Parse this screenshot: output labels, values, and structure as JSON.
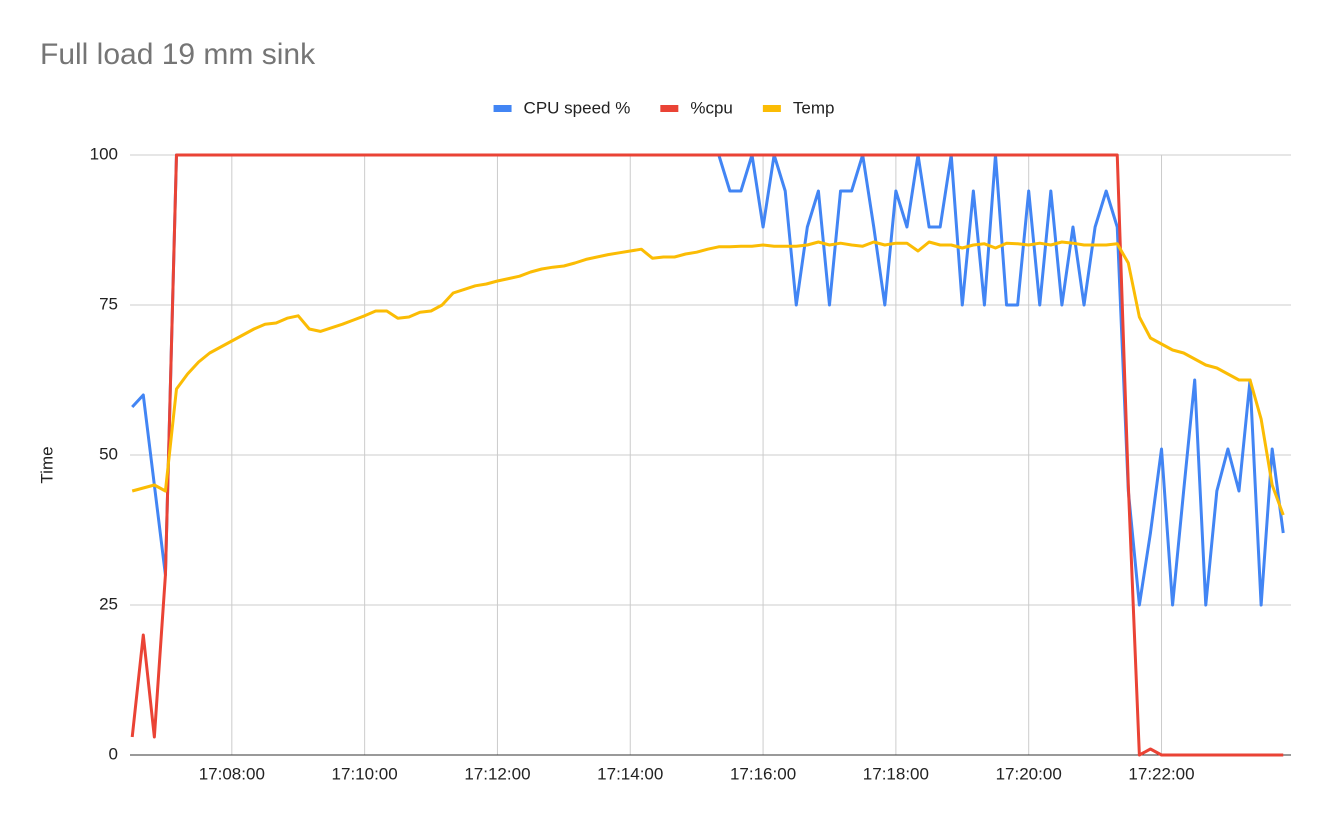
{
  "chart_data": {
    "type": "line",
    "title": "Full load 19 mm sink",
    "y_label": "Time",
    "x": [
      "17:06:30",
      "17:06:40",
      "17:06:50",
      "17:07:00",
      "17:07:10",
      "17:07:20",
      "17:07:30",
      "17:07:40",
      "17:07:50",
      "17:08:00",
      "17:08:10",
      "17:08:20",
      "17:08:30",
      "17:08:40",
      "17:08:50",
      "17:09:00",
      "17:09:10",
      "17:09:20",
      "17:09:30",
      "17:09:40",
      "17:09:50",
      "17:10:00",
      "17:10:10",
      "17:10:20",
      "17:10:30",
      "17:10:40",
      "17:10:50",
      "17:11:00",
      "17:11:10",
      "17:11:20",
      "17:11:30",
      "17:11:40",
      "17:11:50",
      "17:12:00",
      "17:12:10",
      "17:12:20",
      "17:12:30",
      "17:12:40",
      "17:12:50",
      "17:13:00",
      "17:13:10",
      "17:13:20",
      "17:13:30",
      "17:13:40",
      "17:13:50",
      "17:14:00",
      "17:14:10",
      "17:14:20",
      "17:14:30",
      "17:14:40",
      "17:14:50",
      "17:15:00",
      "17:15:10",
      "17:15:20",
      "17:15:30",
      "17:15:40",
      "17:15:50",
      "17:16:00",
      "17:16:10",
      "17:16:20",
      "17:16:30",
      "17:16:40",
      "17:16:50",
      "17:17:00",
      "17:17:10",
      "17:17:20",
      "17:17:30",
      "17:17:40",
      "17:17:50",
      "17:18:00",
      "17:18:10",
      "17:18:20",
      "17:18:30",
      "17:18:40",
      "17:18:50",
      "17:19:00",
      "17:19:10",
      "17:19:20",
      "17:19:30",
      "17:19:40",
      "17:19:50",
      "17:20:00",
      "17:20:10",
      "17:20:20",
      "17:20:30",
      "17:20:40",
      "17:20:50",
      "17:21:00",
      "17:21:10",
      "17:21:20",
      "17:21:30",
      "17:21:40",
      "17:21:50",
      "17:22:00",
      "17:22:10",
      "17:22:20",
      "17:22:30",
      "17:22:40",
      "17:22:50",
      "17:23:00",
      "17:23:10",
      "17:23:20",
      "17:23:30",
      "17:23:40",
      "17:23:50"
    ],
    "series": [
      {
        "name": "CPU speed %",
        "color": "#4285f4",
        "values": [
          58,
          60,
          45,
          30,
          100,
          100,
          100,
          100,
          100,
          100,
          100,
          100,
          100,
          100,
          100,
          100,
          100,
          100,
          100,
          100,
          100,
          100,
          100,
          100,
          100,
          100,
          100,
          100,
          100,
          100,
          100,
          100,
          100,
          100,
          100,
          100,
          100,
          100,
          100,
          100,
          100,
          100,
          100,
          100,
          100,
          100,
          100,
          100,
          100,
          100,
          100,
          100,
          100,
          100,
          94,
          94,
          100,
          88,
          100,
          94,
          75,
          88,
          94,
          75,
          94,
          94,
          100,
          88,
          75,
          94,
          88,
          100,
          88,
          88,
          100,
          75,
          94,
          75,
          100,
          75,
          75,
          94,
          75,
          94,
          75,
          88,
          75,
          88,
          94,
          88,
          44,
          25,
          37,
          51,
          25,
          44,
          62.5,
          25,
          44,
          51,
          44,
          62.5,
          25,
          51,
          37
        ]
      },
      {
        "name": "%cpu",
        "color": "#ea4335",
        "values": [
          3,
          20,
          3,
          30,
          100,
          100,
          100,
          100,
          100,
          100,
          100,
          100,
          100,
          100,
          100,
          100,
          100,
          100,
          100,
          100,
          100,
          100,
          100,
          100,
          100,
          100,
          100,
          100,
          100,
          100,
          100,
          100,
          100,
          100,
          100,
          100,
          100,
          100,
          100,
          100,
          100,
          100,
          100,
          100,
          100,
          100,
          100,
          100,
          100,
          100,
          100,
          100,
          100,
          100,
          100,
          100,
          100,
          100,
          100,
          100,
          100,
          100,
          100,
          100,
          100,
          100,
          100,
          100,
          100,
          100,
          100,
          100,
          100,
          100,
          100,
          100,
          100,
          100,
          100,
          100,
          100,
          100,
          100,
          100,
          100,
          100,
          100,
          100,
          100,
          100,
          45,
          0,
          1,
          0,
          0,
          0,
          0,
          0,
          0,
          0,
          0,
          0,
          0,
          0,
          0
        ]
      },
      {
        "name": "Temp",
        "color": "#fbbc04",
        "values": [
          44,
          44.5,
          45,
          44,
          61,
          63.5,
          65.5,
          67,
          68,
          69,
          70,
          71,
          71.8,
          72,
          72.8,
          73.2,
          71,
          70.6,
          71.2,
          71.8,
          72.5,
          73.2,
          74,
          74,
          72.8,
          73,
          73.8,
          74,
          75,
          77,
          77.6,
          78.2,
          78.5,
          79,
          79.4,
          79.8,
          80.5,
          81,
          81.3,
          81.5,
          82,
          82.6,
          83,
          83.4,
          83.7,
          84,
          84.3,
          82.8,
          83,
          83,
          83.5,
          83.8,
          84.3,
          84.7,
          84.7,
          84.8,
          84.8,
          85,
          84.8,
          84.8,
          84.8,
          85,
          85.5,
          85,
          85.3,
          85,
          84.8,
          85.5,
          85,
          85.3,
          85.3,
          84,
          85.5,
          85,
          85,
          84.5,
          85,
          85.2,
          84.5,
          85.3,
          85.2,
          85,
          85.3,
          85,
          85.5,
          85.3,
          85,
          85,
          85,
          85.2,
          82,
          73,
          69.5,
          68.5,
          67.5,
          67,
          66,
          65,
          64.5,
          63.5,
          62.5,
          62.5,
          56,
          45,
          40
        ]
      }
    ],
    "xlim": [
      "17:06:28",
      "17:23:57"
    ],
    "xticks": [
      "17:08:00",
      "17:10:00",
      "17:12:00",
      "17:14:00",
      "17:16:00",
      "17:18:00",
      "17:20:00",
      "17:22:00"
    ],
    "ylim": [
      0,
      100
    ],
    "yticks": [
      0,
      25,
      50,
      75,
      100
    ],
    "grid": true,
    "legend": "top"
  }
}
